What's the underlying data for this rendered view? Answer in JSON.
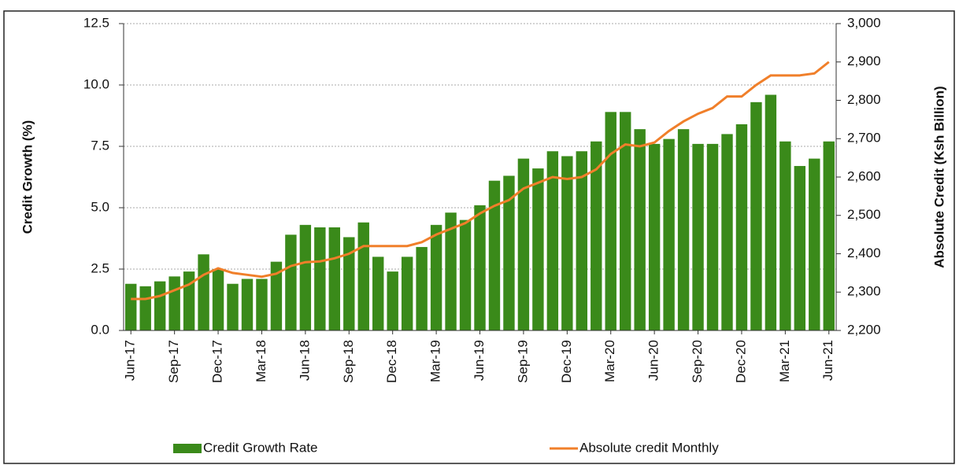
{
  "chart_data": {
    "type": "bar_line",
    "categories": [
      "Jun-17",
      null,
      null,
      "Sep-17",
      null,
      null,
      "Dec-17",
      null,
      null,
      "Mar-18",
      null,
      null,
      "Jun-18",
      null,
      null,
      "Sep-18",
      null,
      null,
      "Dec-18",
      null,
      null,
      "Mar-19",
      null,
      null,
      "Jun-19",
      null,
      null,
      "Sep-19",
      null,
      null,
      "Dec-19",
      null,
      null,
      "Mar-20",
      null,
      null,
      "Jun-20",
      null,
      null,
      "Sep-20",
      null,
      null,
      "Dec-20",
      null,
      null,
      "Mar-21",
      null,
      null,
      "Jun-21"
    ],
    "series": [
      {
        "name": "Credit Growth Rate",
        "color": "#3a8a1a",
        "kind": "bar",
        "axis": "y",
        "values": [
          1.9,
          1.8,
          2.0,
          2.2,
          2.4,
          3.1,
          2.5,
          1.9,
          2.1,
          2.1,
          2.8,
          3.9,
          4.3,
          4.2,
          4.2,
          3.8,
          4.4,
          3.0,
          2.4,
          3.0,
          3.4,
          4.3,
          4.8,
          4.5,
          5.1,
          6.1,
          6.3,
          7.0,
          6.6,
          7.3,
          7.1,
          7.3,
          7.7,
          8.9,
          8.9,
          8.2,
          7.6,
          7.8,
          8.2,
          7.6,
          7.6,
          8.0,
          8.4,
          9.3,
          9.6,
          7.7,
          6.7,
          7.0,
          7.7
        ]
      },
      {
        "name": "Absolute credit Monthly",
        "color": "#f07f2a",
        "kind": "line",
        "axis": "y2",
        "values": [
          2282,
          2282,
          2290,
          2305,
          2320,
          2345,
          2362,
          2350,
          2345,
          2340,
          2348,
          2368,
          2378,
          2380,
          2388,
          2400,
          2420,
          2420,
          2420,
          2420,
          2430,
          2450,
          2465,
          2480,
          2505,
          2525,
          2540,
          2570,
          2585,
          2600,
          2595,
          2600,
          2620,
          2660,
          2685,
          2680,
          2690,
          2720,
          2745,
          2765,
          2780,
          2810,
          2810,
          2840,
          2865,
          2865,
          2865,
          2870,
          2900
        ]
      }
    ],
    "y_label": "Credit Growth (%)",
    "y2_label": "Absolute Credit (Ksh Billion)",
    "ylim": [
      0,
      12.5
    ],
    "yticks": [
      {
        "value": 0,
        "label": "0.0"
      },
      2.5,
      {
        "value": 5,
        "label": "5.0"
      },
      7.5,
      {
        "value": 10,
        "label": "10.0"
      },
      12.5
    ],
    "y2lim": [
      2200,
      3000
    ],
    "y2ticks": [
      {
        "value": 2200,
        "label": "2,200"
      },
      {
        "value": 2300,
        "label": "2,300"
      },
      {
        "value": 2400,
        "label": "2,400"
      },
      {
        "value": 2500,
        "label": "2,500"
      },
      {
        "value": 2600,
        "label": "2,600"
      },
      {
        "value": 2700,
        "label": "2,700"
      },
      {
        "value": 2800,
        "label": "2,800"
      },
      {
        "value": 2900,
        "label": "2,900"
      },
      {
        "value": 3000,
        "label": "3,000"
      }
    ],
    "grid": true,
    "legend": "bottom"
  }
}
